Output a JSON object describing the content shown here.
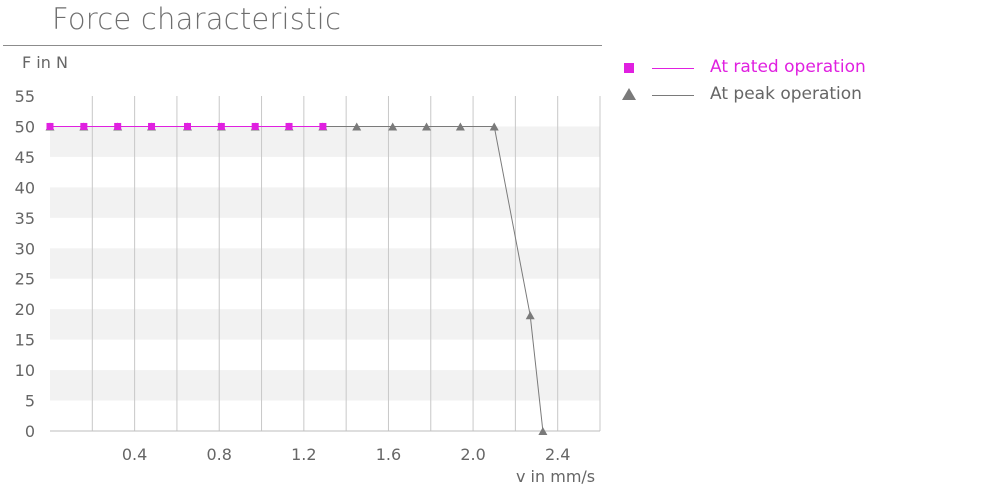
{
  "title": "Force characteristic",
  "colors": {
    "rated": "#e020e0",
    "peak": "#7a7a7a",
    "text": "#666666",
    "grid_band": "#f2f2f2",
    "grid_line": "#c8c8c8"
  },
  "legend": [
    {
      "label": "At rated operation",
      "marker": "square",
      "color": "#e020e0"
    },
    {
      "label": "At peak operation",
      "marker": "triangle",
      "color": "#7a7a7a"
    }
  ],
  "chart_data": {
    "type": "line",
    "title": "Force characteristic",
    "xlabel": "v in mm/s",
    "ylabel": "F in N",
    "xlim": [
      0,
      2.6
    ],
    "ylim": [
      0,
      55
    ],
    "x_ticks": [
      0.4,
      0.8,
      1.2,
      1.6,
      2.0,
      2.4
    ],
    "x_tick_labels": [
      "0.4",
      "0.8",
      "1.2",
      "1.6",
      "2.0",
      "2.4"
    ],
    "y_ticks": [
      0,
      5,
      10,
      15,
      20,
      25,
      30,
      35,
      40,
      45,
      50,
      55
    ],
    "grid": true,
    "legend_position": "right",
    "series": [
      {
        "name": "At rated operation",
        "marker": "square",
        "color": "#e020e0",
        "x": [
          0,
          0.16,
          0.32,
          0.48,
          0.65,
          0.81,
          0.97,
          1.13,
          1.29
        ],
        "y": [
          50,
          50,
          50,
          50,
          50,
          50,
          50,
          50,
          50
        ]
      },
      {
        "name": "At peak operation",
        "marker": "triangle",
        "color": "#7a7a7a",
        "x": [
          0,
          0.16,
          0.32,
          0.48,
          0.65,
          0.81,
          0.97,
          1.13,
          1.29,
          1.45,
          1.62,
          1.78,
          1.94,
          2.1,
          2.27,
          2.33
        ],
        "y": [
          50,
          50,
          50,
          50,
          50,
          50,
          50,
          50,
          50,
          50,
          50,
          50,
          50,
          50,
          19,
          0
        ]
      }
    ]
  }
}
